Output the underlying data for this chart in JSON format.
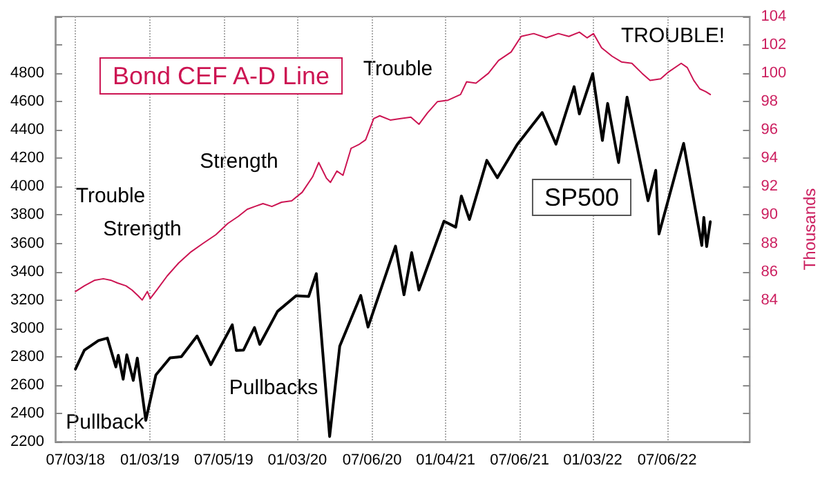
{
  "chart_data": {
    "type": "line",
    "y2label": "Thousands",
    "annotations": [
      "Trouble",
      "Strength",
      "Strength",
      "Trouble",
      "TROUBLE!",
      "Pullback",
      "Pullbacks"
    ],
    "series": [
      {
        "name": "Bond CEF A-D Line",
        "color": "#cc1452",
        "axis": "y2",
        "x": [
          "2018-07-03",
          "2018-07-25",
          "2018-08-20",
          "2018-09-10",
          "2018-09-28",
          "2018-10-15",
          "2018-11-05",
          "2018-11-20",
          "2018-12-05",
          "2018-12-15",
          "2018-12-28",
          "2019-01-04",
          "2019-01-20",
          "2019-02-15",
          "2019-03-15",
          "2019-04-15",
          "2019-05-15",
          "2019-06-15",
          "2019-07-15",
          "2019-08-10",
          "2019-09-01",
          "2019-09-20",
          "2019-10-10",
          "2019-11-01",
          "2019-11-25",
          "2019-12-20",
          "2020-01-15",
          "2020-02-10",
          "2020-02-25",
          "2020-03-15",
          "2020-03-25",
          "2020-04-10",
          "2020-04-25",
          "2020-05-15",
          "2020-06-05",
          "2020-06-20",
          "2020-07-10",
          "2020-07-25",
          "2020-08-20",
          "2020-09-15",
          "2020-10-10",
          "2020-10-30",
          "2020-11-20",
          "2020-12-15",
          "2021-01-10",
          "2021-02-10",
          "2021-02-25",
          "2021-03-20",
          "2021-04-20",
          "2021-05-15",
          "2021-06-15",
          "2021-07-10",
          "2021-08-10",
          "2021-09-10",
          "2021-10-10",
          "2021-11-05",
          "2021-12-01",
          "2021-12-20",
          "2022-01-05",
          "2022-01-25",
          "2022-02-20",
          "2022-03-15",
          "2022-04-10",
          "2022-05-05",
          "2022-05-25",
          "2022-06-20",
          "2022-07-10",
          "2022-08-10",
          "2022-08-25",
          "2022-09-10",
          "2022-09-25",
          "2022-10-10",
          "2022-10-21"
        ],
        "values": [
          84.6,
          85.0,
          85.4,
          85.5,
          85.4,
          85.2,
          85.0,
          84.7,
          84.3,
          84.0,
          84.6,
          84.1,
          84.7,
          85.7,
          86.6,
          87.4,
          88.0,
          88.6,
          89.4,
          89.9,
          90.4,
          90.6,
          90.8,
          90.6,
          90.9,
          91.0,
          91.6,
          92.7,
          93.7,
          92.6,
          92.3,
          93.1,
          92.8,
          94.7,
          95.0,
          95.3,
          96.8,
          97.0,
          96.7,
          96.8,
          96.9,
          96.4,
          97.2,
          98.0,
          98.1,
          98.5,
          99.4,
          99.3,
          100.0,
          100.9,
          101.5,
          102.6,
          102.8,
          102.5,
          102.8,
          102.6,
          102.9,
          102.5,
          102.8,
          101.8,
          101.2,
          100.8,
          100.7,
          100.0,
          99.5,
          99.6,
          100.1,
          100.7,
          100.4,
          99.5,
          98.9,
          98.7,
          98.5
        ]
      },
      {
        "name": "SP500",
        "color": "#000000",
        "x": [
          "2018-07-03",
          "2018-07-25",
          "2018-08-29",
          "2018-09-20",
          "2018-10-11",
          "2018-10-17",
          "2018-10-29",
          "2018-11-07",
          "2018-11-23",
          "2018-12-03",
          "2018-12-24",
          "2019-01-18",
          "2019-02-22",
          "2019-03-22",
          "2019-04-30",
          "2019-06-03",
          "2019-07-26",
          "2019-08-05",
          "2019-08-23",
          "2019-09-19",
          "2019-10-02",
          "2019-11-15",
          "2019-12-31",
          "2020-01-31",
          "2020-02-19",
          "2020-03-23",
          "2020-04-17",
          "2020-06-08",
          "2020-06-26",
          "2020-09-02",
          "2020-09-23",
          "2020-10-12",
          "2020-10-30",
          "2020-12-31",
          "2021-01-29",
          "2021-02-12",
          "2021-03-04",
          "2021-04-16",
          "2021-05-12",
          "2021-06-30",
          "2021-08-31",
          "2021-10-04",
          "2021-11-18",
          "2021-12-01",
          "2022-01-03",
          "2022-01-27",
          "2022-02-09",
          "2022-03-08",
          "2022-03-29",
          "2022-05-20",
          "2022-06-08",
          "2022-06-16",
          "2022-08-16",
          "2022-09-30",
          "2022-10-05",
          "2022-10-12",
          "2022-10-21"
        ],
        "values": [
          2713,
          2846,
          2914,
          2931,
          2728,
          2810,
          2641,
          2814,
          2633,
          2790,
          2351,
          2671,
          2792,
          2800,
          2946,
          2744,
          3025,
          2844,
          2847,
          3006,
          2887,
          3120,
          3230,
          3225,
          3386,
          2237,
          2875,
          3232,
          3009,
          3580,
          3237,
          3534,
          3270,
          3756,
          3714,
          3934,
          3768,
          4185,
          4063,
          4297,
          4523,
          4300,
          4705,
          4513,
          4797,
          4326,
          4587,
          4170,
          4631,
          3901,
          4115,
          3666,
          4305,
          3585,
          3783,
          3577,
          3752
        ]
      }
    ],
    "xlim": [
      "2018-05-14",
      "2023-01-27"
    ],
    "xticks": [
      {
        "value": "2018-07-03",
        "label": "07/03/18"
      },
      {
        "value": "2019-01-03",
        "label": "01/03/19"
      },
      {
        "value": "2019-07-05",
        "label": "07/05/19"
      },
      {
        "value": "2020-01-03",
        "label": "01/03/20"
      },
      {
        "value": "2020-07-06",
        "label": "07/06/20"
      },
      {
        "value": "2021-01-04",
        "label": "01/04/21"
      },
      {
        "value": "2021-07-06",
        "label": "07/06/21"
      },
      {
        "value": "2022-01-03",
        "label": "01/03/22"
      },
      {
        "value": "2022-07-06",
        "label": "07/06/22"
      }
    ],
    "ylim": [
      2200,
      5200
    ],
    "yticks": [
      2200,
      2400,
      2600,
      2800,
      3000,
      3200,
      3400,
      3600,
      3800,
      4000,
      4200,
      4400,
      4600,
      4800,
      {
        "value": 5000,
        "label": null
      },
      {
        "value": 5200,
        "label": null
      }
    ],
    "y2lim": [
      74,
      104
    ],
    "y2ticks": [
      {
        "value": 74,
        "label": null
      },
      {
        "value": 76,
        "label": null
      },
      {
        "value": 78,
        "label": null
      },
      {
        "value": 80,
        "label": null
      },
      {
        "value": 82,
        "label": null
      },
      84,
      86,
      88,
      90,
      92,
      94,
      96,
      98,
      100,
      102,
      104
    ],
    "grid": "x",
    "marker": "none",
    "line_style": "solid"
  }
}
